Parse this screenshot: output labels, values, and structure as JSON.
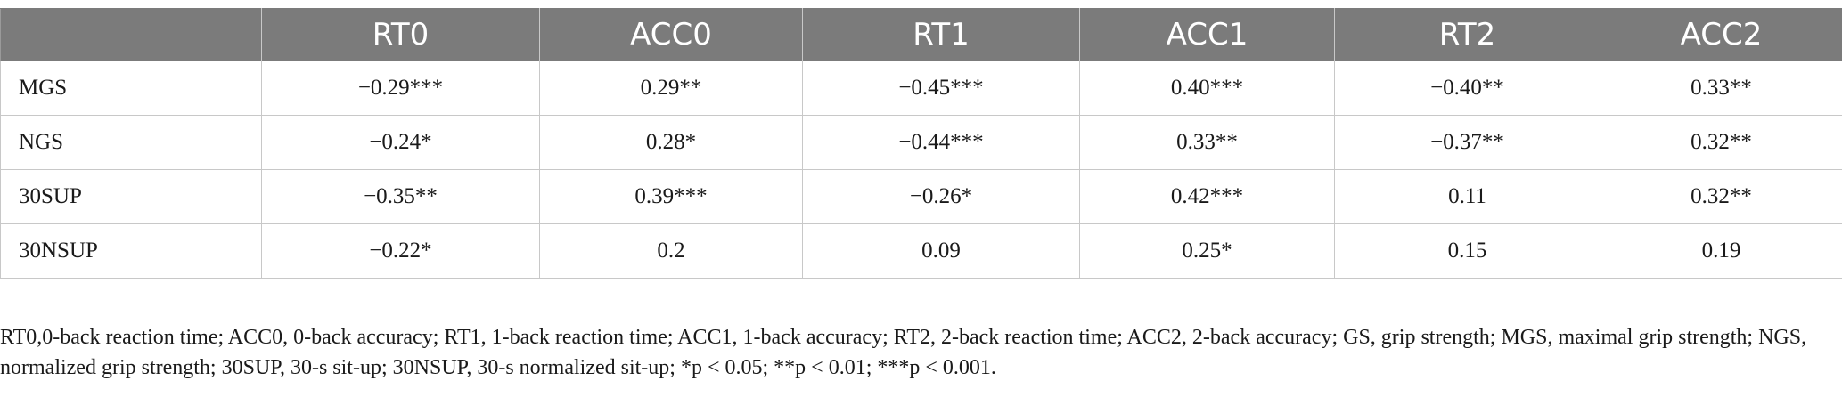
{
  "table": {
    "columns": [
      "",
      "RT0",
      "ACC0",
      "RT1",
      "ACC1",
      "RT2",
      "ACC2"
    ],
    "rows": [
      [
        "MGS",
        "−0.29***",
        "0.29**",
        "−0.45***",
        "0.40***",
        "−0.40**",
        "0.33**"
      ],
      [
        "NGS",
        "−0.24*",
        "0.28*",
        "−0.44***",
        "0.33**",
        "−0.37**",
        "0.32**"
      ],
      [
        "30SUP",
        "−0.35**",
        "0.39***",
        "−0.26*",
        "0.42***",
        "0.11",
        "0.32**"
      ],
      [
        "30NSUP",
        "−0.22*",
        "0.2",
        "0.09",
        "0.25*",
        "0.15",
        "0.19"
      ]
    ]
  },
  "caption": "RT0,0-back reaction time; ACC0, 0-back accuracy; RT1, 1-back reaction time; ACC1, 1-back accuracy; RT2, 2-back reaction time; ACC2, 2-back accuracy; GS, grip strength; MGS, maximal grip strength; NGS, normalized grip strength; 30SUP, 30-s sit-up; 30NSUP, 30-s normalized sit-up; *p < 0.05; **p < 0.01; ***p < 0.001."
}
